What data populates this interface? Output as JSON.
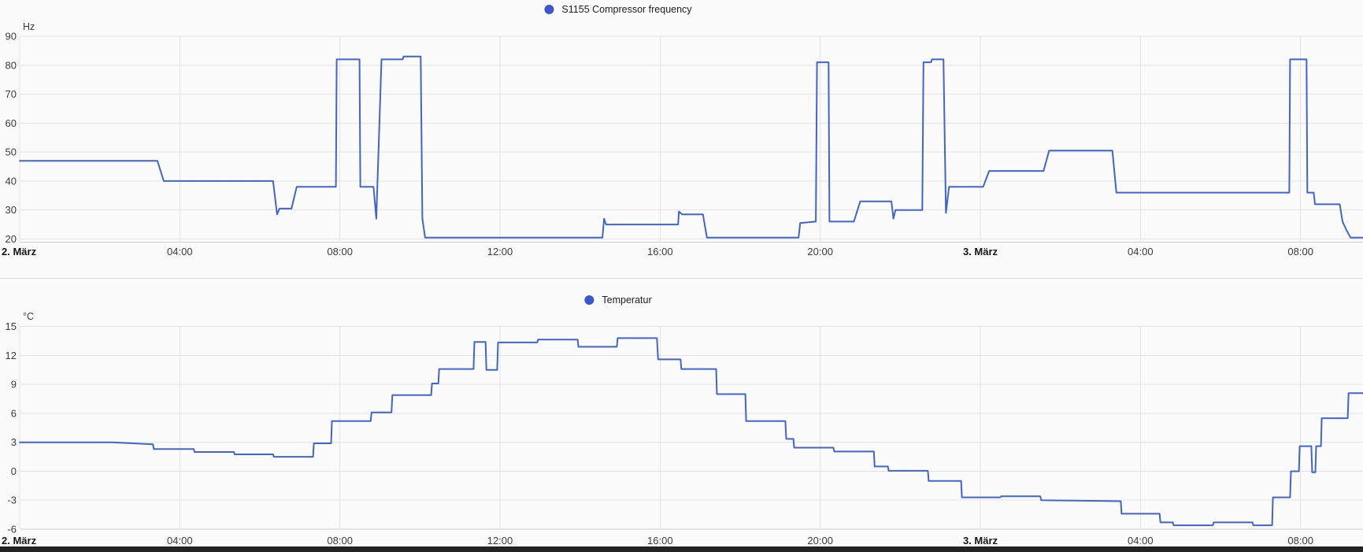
{
  "colors": {
    "line_blue": "#4164d1",
    "legend_dot_blue": "#3b57cb",
    "grid": "#e3e3e3",
    "axis_line": "#cfcfcf",
    "tick_text": "#3a3a3a",
    "date_text": "#141414",
    "background": "#fbfbfb",
    "divider": "#d9d9d9",
    "bottom_bar": "#222222"
  },
  "chart_data": [
    {
      "type": "line",
      "title": "S1155 Compressor frequency",
      "ylabel": "Hz",
      "ylim": [
        20,
        90
      ],
      "y_ticks": [
        90,
        80,
        70,
        60,
        50,
        40,
        30,
        20
      ],
      "grid": "on",
      "legend_position": "top-center",
      "x_unit": "hours since 2. März 00:00",
      "x_ticks": [
        {
          "h": 0,
          "label": "2. März",
          "bold": true,
          "align": "left"
        },
        {
          "h": 4,
          "label": "04:00"
        },
        {
          "h": 8,
          "label": "08:00"
        },
        {
          "h": 12,
          "label": "12:00"
        },
        {
          "h": 16,
          "label": "16:00"
        },
        {
          "h": 20,
          "label": "20:00"
        },
        {
          "h": 24,
          "label": "3. März",
          "bold": true
        },
        {
          "h": 28,
          "label": "04:00"
        },
        {
          "h": 32,
          "label": "08:00"
        }
      ],
      "series": [
        {
          "name": "S1155 Compressor frequency",
          "points": [
            [
              0,
              47
            ],
            [
              3.44,
              47
            ],
            [
              3.6,
              40
            ],
            [
              6.33,
              40
            ],
            [
              6.43,
              28.5
            ],
            [
              6.49,
              30.5
            ],
            [
              6.79,
              30.5
            ],
            [
              6.92,
              38
            ],
            [
              7.9,
              38
            ],
            [
              7.92,
              82
            ],
            [
              8.49,
              82
            ],
            [
              8.51,
              38
            ],
            [
              8.84,
              38
            ],
            [
              8.91,
              27
            ],
            [
              9.04,
              82
            ],
            [
              9.57,
              82
            ],
            [
              9.59,
              83
            ],
            [
              10.02,
              83
            ],
            [
              10.06,
              27
            ],
            [
              10.13,
              20.5
            ],
            [
              14.56,
              20.5
            ],
            [
              14.6,
              27
            ],
            [
              14.65,
              25
            ],
            [
              16.45,
              25
            ],
            [
              16.47,
              29.5
            ],
            [
              16.55,
              28.5
            ],
            [
              17.07,
              28.5
            ],
            [
              17.17,
              20.5
            ],
            [
              19.46,
              20.5
            ],
            [
              19.5,
              25.5
            ],
            [
              19.89,
              26
            ],
            [
              19.92,
              81
            ],
            [
              20.21,
              81
            ],
            [
              20.23,
              26
            ],
            [
              20.84,
              26
            ],
            [
              21.0,
              33
            ],
            [
              21.78,
              33
            ],
            [
              21.83,
              27
            ],
            [
              21.88,
              30
            ],
            [
              22.55,
              30
            ],
            [
              22.58,
              81
            ],
            [
              22.77,
              81
            ],
            [
              22.79,
              82
            ],
            [
              23.08,
              82
            ],
            [
              23.14,
              29
            ],
            [
              23.22,
              38
            ],
            [
              24.07,
              38
            ],
            [
              24.22,
              43.5
            ],
            [
              25.58,
              43.5
            ],
            [
              25.72,
              50.5
            ],
            [
              27.3,
              50.5
            ],
            [
              27.4,
              36
            ],
            [
              31.72,
              36
            ],
            [
              31.74,
              82
            ],
            [
              32.15,
              82
            ],
            [
              32.17,
              36
            ],
            [
              32.33,
              36
            ],
            [
              32.36,
              32
            ],
            [
              32.98,
              32
            ],
            [
              33.05,
              26
            ],
            [
              33.15,
              23
            ],
            [
              33.25,
              20.5
            ],
            [
              33.56,
              20.5
            ]
          ]
        }
      ]
    },
    {
      "type": "line",
      "title": "Temperatur",
      "ylabel": "°C",
      "ylim": [
        -6,
        15
      ],
      "y_ticks": [
        15,
        12,
        9,
        6,
        3,
        0,
        -3,
        -6
      ],
      "grid": "on",
      "legend_position": "top-center",
      "x_unit": "hours since 2. März 00:00",
      "x_ticks": [
        {
          "h": 0,
          "label": "2. März",
          "bold": true,
          "align": "left"
        },
        {
          "h": 4,
          "label": "04:00"
        },
        {
          "h": 8,
          "label": "08:00"
        },
        {
          "h": 12,
          "label": "12:00"
        },
        {
          "h": 16,
          "label": "16:00"
        },
        {
          "h": 20,
          "label": "20:00"
        },
        {
          "h": 24,
          "label": "3. März",
          "bold": true
        },
        {
          "h": 28,
          "label": "04:00"
        },
        {
          "h": 32,
          "label": "08:00"
        }
      ],
      "series": [
        {
          "name": "Temperatur",
          "points": [
            [
              0,
              3
            ],
            [
              2.32,
              3
            ],
            [
              3.33,
              2.8
            ],
            [
              3.35,
              2.3
            ],
            [
              4.35,
              2.3
            ],
            [
              4.37,
              2.0
            ],
            [
              5.35,
              2.0
            ],
            [
              5.37,
              1.75
            ],
            [
              6.33,
              1.75
            ],
            [
              6.35,
              1.5
            ],
            [
              7.33,
              1.5
            ],
            [
              7.35,
              2.9
            ],
            [
              7.78,
              2.9
            ],
            [
              7.8,
              5.2
            ],
            [
              8.77,
              5.2
            ],
            [
              8.79,
              6.1
            ],
            [
              9.29,
              6.1
            ],
            [
              9.31,
              7.9
            ],
            [
              10.28,
              7.9
            ],
            [
              10.3,
              9.1
            ],
            [
              10.46,
              9.1
            ],
            [
              10.48,
              10.6
            ],
            [
              11.34,
              10.6
            ],
            [
              11.36,
              13.4
            ],
            [
              11.64,
              13.4
            ],
            [
              11.66,
              10.5
            ],
            [
              11.93,
              10.5
            ],
            [
              11.95,
              13.35
            ],
            [
              12.93,
              13.35
            ],
            [
              12.95,
              13.65
            ],
            [
              13.94,
              13.65
            ],
            [
              13.96,
              12.9
            ],
            [
              14.92,
              12.9
            ],
            [
              14.94,
              13.8
            ],
            [
              15.92,
              13.8
            ],
            [
              15.95,
              11.6
            ],
            [
              16.51,
              11.6
            ],
            [
              16.53,
              10.6
            ],
            [
              17.4,
              10.6
            ],
            [
              17.42,
              8.0
            ],
            [
              18.13,
              8.0
            ],
            [
              18.15,
              5.2
            ],
            [
              19.13,
              5.2
            ],
            [
              19.15,
              3.35
            ],
            [
              19.33,
              3.35
            ],
            [
              19.35,
              2.45
            ],
            [
              20.33,
              2.45
            ],
            [
              20.35,
              2.05
            ],
            [
              21.34,
              2.05
            ],
            [
              21.36,
              0.5
            ],
            [
              21.69,
              0.5
            ],
            [
              21.71,
              0.05
            ],
            [
              22.69,
              0.05
            ],
            [
              22.71,
              -1.0
            ],
            [
              23.52,
              -1.0
            ],
            [
              23.54,
              -2.7
            ],
            [
              24.5,
              -2.7
            ],
            [
              24.52,
              -2.6
            ],
            [
              25.5,
              -2.6
            ],
            [
              25.52,
              -3.0
            ],
            [
              27.51,
              -3.1
            ],
            [
              27.53,
              -4.4
            ],
            [
              28.48,
              -4.4
            ],
            [
              28.5,
              -5.3
            ],
            [
              28.81,
              -5.3
            ],
            [
              28.83,
              -5.6
            ],
            [
              29.81,
              -5.6
            ],
            [
              29.83,
              -5.3
            ],
            [
              30.8,
              -5.3
            ],
            [
              30.82,
              -5.6
            ],
            [
              31.29,
              -5.6
            ],
            [
              31.31,
              -2.7
            ],
            [
              31.74,
              -2.7
            ],
            [
              31.76,
              0.0
            ],
            [
              31.96,
              0.0
            ],
            [
              31.98,
              2.6
            ],
            [
              32.27,
              2.6
            ],
            [
              32.29,
              -0.1
            ],
            [
              32.37,
              -0.1
            ],
            [
              32.39,
              2.6
            ],
            [
              32.51,
              2.6
            ],
            [
              32.53,
              5.5
            ],
            [
              33.18,
              5.5
            ],
            [
              33.2,
              8.1
            ],
            [
              33.56,
              8.1
            ]
          ]
        }
      ]
    }
  ]
}
